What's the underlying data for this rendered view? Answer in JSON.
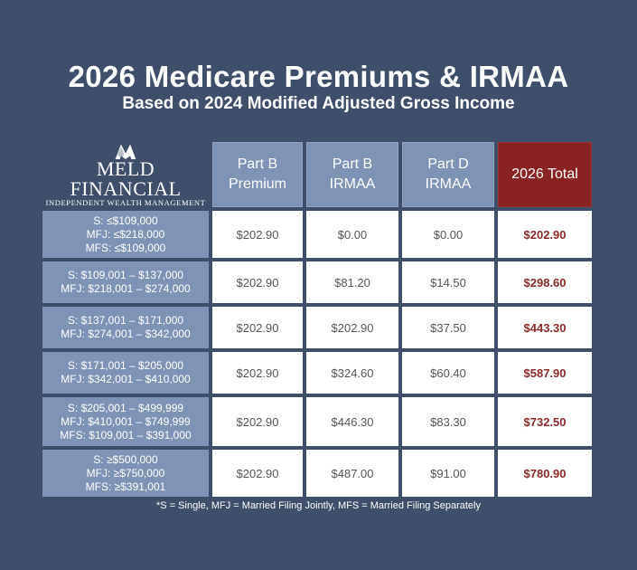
{
  "title": "2026 Medicare Premiums & IRMAA",
  "subtitle": "Based on 2024 Modified Adjusted Gross Income",
  "logo": {
    "name": "MELD FINANCIAL",
    "tagline": "INDEPENDENT WEALTH MANAGEMENT"
  },
  "colors": {
    "background": "#3f4f69",
    "header": "#7f93b5",
    "total_header": "#8a2424",
    "total_text": "#8a2a2a"
  },
  "headers": [
    "Part B\nPremium",
    "Part B\nIRMAA",
    "Part D\nIRMAA",
    "2026 Total"
  ],
  "rows": [
    {
      "income": "S: ≤$109,000\nMFJ: ≤$218,000\nMFS: ≤$109,000",
      "part_b_premium": "$202.90",
      "part_b_irmaa": "$0.00",
      "part_d_irmaa": "$0.00",
      "total": "$202.90"
    },
    {
      "income": "S: $109,001 – $137,000\nMFJ: $218,001 – $274,000",
      "part_b_premium": "$202.90",
      "part_b_irmaa": "$81.20",
      "part_d_irmaa": "$14.50",
      "total": "$298.60"
    },
    {
      "income": "S: $137,001 – $171,000\nMFJ: $274,001 – $342,000",
      "part_b_premium": "$202.90",
      "part_b_irmaa": "$202.90",
      "part_d_irmaa": "$37.50",
      "total": "$443.30"
    },
    {
      "income": "S: $171,001 – $205,000\nMFJ: $342,001 – $410,000",
      "part_b_premium": "$202.90",
      "part_b_irmaa": "$324.60",
      "part_d_irmaa": "$60.40",
      "total": "$587.90"
    },
    {
      "income": "S: $205,001 – $499,999\nMFJ: $410,001 – $749,999\nMFS: $109,001 – $391,000",
      "part_b_premium": "$202.90",
      "part_b_irmaa": "$446.30",
      "part_d_irmaa": "$83.30",
      "total": "$732.50"
    },
    {
      "income": "S: ≥$500,000\nMFJ: ≥$750,000\nMFS: ≥$391,001",
      "part_b_premium": "$202.90",
      "part_b_irmaa": "$487.00",
      "part_d_irmaa": "$91.00",
      "total": "$780.90"
    }
  ],
  "footnote": "*S = Single, MFJ = Married Filing Jointly, MFS = Married Filing Separately"
}
